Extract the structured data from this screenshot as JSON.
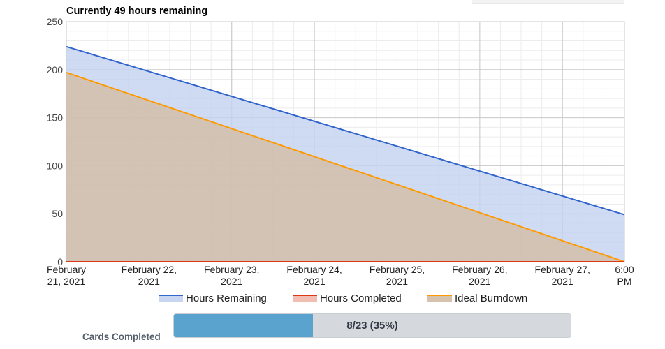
{
  "chart_data": {
    "type": "area",
    "title": "Currently 49 hours remaining",
    "xlabel": "",
    "ylabel": "",
    "ylim": [
      0,
      250
    ],
    "yticks": [
      0,
      50,
      100,
      150,
      200,
      250
    ],
    "xlim": [
      "2021-02-21 00:00",
      "2021-02-27 18:00"
    ],
    "xticks": [
      {
        "at": "2021-02-21 00:00",
        "lines": [
          "February",
          "21, 2021"
        ]
      },
      {
        "at": "2021-02-22 00:00",
        "lines": [
          "February 22,",
          "2021"
        ]
      },
      {
        "at": "2021-02-23 00:00",
        "lines": [
          "February 23,",
          "2021"
        ]
      },
      {
        "at": "2021-02-24 00:00",
        "lines": [
          "February 24,",
          "2021"
        ]
      },
      {
        "at": "2021-02-25 00:00",
        "lines": [
          "February 25,",
          "2021"
        ]
      },
      {
        "at": "2021-02-26 00:00",
        "lines": [
          "February 26,",
          "2021"
        ]
      },
      {
        "at": "2021-02-27 00:00",
        "lines": [
          "February 27,",
          "2021"
        ]
      },
      {
        "at": "2021-02-27 18:00",
        "lines": [
          "6:00",
          "PM"
        ]
      }
    ],
    "grid": true,
    "legend_position": "bottom",
    "series": [
      {
        "name": "Hours Remaining",
        "color": "#3366cc",
        "fill": "#c3d2f0",
        "points": [
          {
            "x": "2021-02-21 00:00",
            "y": 224
          },
          {
            "x": "2021-02-27 18:00",
            "y": 49
          }
        ]
      },
      {
        "name": "Hours Completed",
        "color": "#dc3912",
        "fill": "#f0b7a8",
        "points": [
          {
            "x": "2021-02-21 00:00",
            "y": 0
          },
          {
            "x": "2021-02-27 18:00",
            "y": 0
          }
        ]
      },
      {
        "name": "Ideal Burndown",
        "color": "#ff9900",
        "fill": "#d2bda5",
        "points": [
          {
            "x": "2021-02-21 00:00",
            "y": 197
          },
          {
            "x": "2021-02-27 18:00",
            "y": 0
          }
        ]
      }
    ]
  },
  "progress": {
    "label": "Cards Completed",
    "text": "8/23 (35%)",
    "fraction": 0.35
  }
}
